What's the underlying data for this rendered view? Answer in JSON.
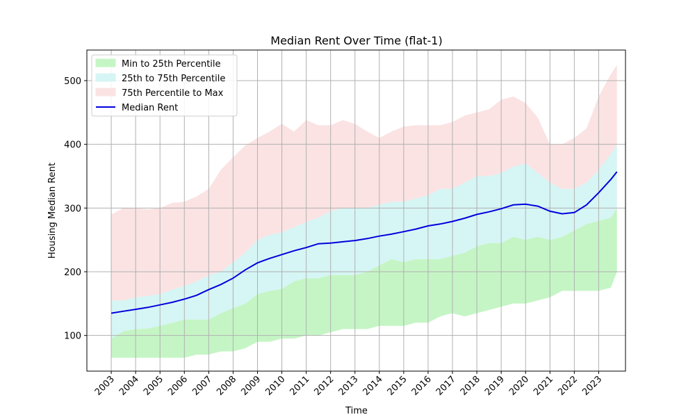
{
  "chart_data": {
    "type": "area",
    "title": "Median Rent Over Time (flat-1)",
    "xlabel": "Time",
    "ylabel": "Housing Median Rent",
    "x_ticks": [
      "2003",
      "2004",
      "2005",
      "2006",
      "2007",
      "2008",
      "2009",
      "2010",
      "2011",
      "2012",
      "2013",
      "2014",
      "2015",
      "2016",
      "2017",
      "2018",
      "2019",
      "2020",
      "2021",
      "2022",
      "2023"
    ],
    "y_ticks": [
      100,
      200,
      300,
      400,
      500
    ],
    "xlim": [
      2002,
      2024.1
    ],
    "ylim": [
      44,
      548
    ],
    "grid": true,
    "legend_position": "upper-left",
    "x": [
      2003.0,
      2003.5,
      2004.0,
      2004.5,
      2005.0,
      2005.5,
      2006.0,
      2006.5,
      2007.0,
      2007.5,
      2008.0,
      2008.5,
      2009.0,
      2009.5,
      2010.0,
      2010.5,
      2011.0,
      2011.5,
      2012.0,
      2012.5,
      2013.0,
      2013.5,
      2014.0,
      2014.5,
      2015.0,
      2015.5,
      2016.0,
      2016.5,
      2017.0,
      2017.5,
      2018.0,
      2018.5,
      2019.0,
      2019.5,
      2020.0,
      2020.5,
      2021.0,
      2021.5,
      2022.0,
      2022.5,
      2023.0,
      2023.5,
      2023.75
    ],
    "series": [
      {
        "name": "Min to 25th Percentile",
        "color": "#c5f5c5",
        "lower": [
          65,
          65,
          65,
          65,
          65,
          65,
          65,
          70,
          70,
          75,
          75,
          80,
          90,
          90,
          95,
          95,
          100,
          100,
          105,
          110,
          110,
          110,
          115,
          115,
          115,
          120,
          120,
          130,
          135,
          130,
          135,
          140,
          145,
          150,
          150,
          155,
          160,
          170,
          170,
          170,
          170,
          175,
          200
        ],
        "upper": [
          95,
          107,
          110,
          111,
          115,
          120,
          125,
          125,
          125,
          135,
          143,
          150,
          165,
          170,
          173,
          185,
          190,
          190,
          195,
          195,
          195,
          200,
          210,
          220,
          215,
          220,
          220,
          220,
          225,
          230,
          240,
          245,
          245,
          255,
          250,
          255,
          250,
          255,
          265,
          275,
          280,
          285,
          300
        ]
      },
      {
        "name": "25th to 75th Percentile",
        "color": "#d6f5f5",
        "lower": [
          95,
          107,
          110,
          111,
          115,
          120,
          125,
          125,
          125,
          135,
          143,
          150,
          165,
          170,
          173,
          185,
          190,
          190,
          195,
          195,
          195,
          200,
          210,
          220,
          215,
          220,
          220,
          220,
          225,
          230,
          240,
          245,
          245,
          255,
          250,
          255,
          250,
          255,
          265,
          275,
          280,
          285,
          300
        ],
        "upper": [
          155,
          155,
          160,
          162,
          165,
          172,
          178,
          185,
          195,
          200,
          215,
          230,
          250,
          258,
          262,
          270,
          278,
          285,
          295,
          300,
          300,
          300,
          305,
          310,
          310,
          315,
          320,
          330,
          330,
          340,
          350,
          350,
          355,
          365,
          370,
          355,
          340,
          330,
          330,
          340,
          360,
          385,
          400
        ]
      },
      {
        "name": "75th Percentile to Max",
        "color": "#fbe3e3",
        "lower": [
          155,
          155,
          160,
          162,
          165,
          172,
          178,
          185,
          195,
          200,
          215,
          230,
          250,
          258,
          262,
          270,
          278,
          285,
          295,
          300,
          300,
          300,
          305,
          310,
          310,
          315,
          320,
          330,
          330,
          340,
          350,
          350,
          355,
          365,
          370,
          355,
          340,
          330,
          330,
          340,
          360,
          385,
          400
        ],
        "upper": [
          290,
          300,
          300,
          298,
          300,
          308,
          310,
          318,
          330,
          360,
          380,
          398,
          410,
          420,
          432,
          420,
          438,
          430,
          430,
          438,
          432,
          420,
          410,
          420,
          428,
          430,
          430,
          430,
          435,
          445,
          450,
          455,
          470,
          475,
          465,
          442,
          400,
          400,
          410,
          425,
          475,
          510,
          525
        ]
      },
      {
        "name": "Median Rent",
        "color": "#0000dd",
        "values": [
          135,
          138,
          141,
          144,
          148,
          152,
          157,
          163,
          172,
          180,
          190,
          203,
          214,
          221,
          227,
          233,
          238,
          244,
          245,
          247,
          249,
          252,
          256,
          259,
          263,
          267,
          272,
          275,
          279,
          284,
          290,
          294,
          299,
          305,
          306,
          303,
          295,
          291,
          293,
          305,
          324,
          345,
          357
        ]
      }
    ]
  }
}
